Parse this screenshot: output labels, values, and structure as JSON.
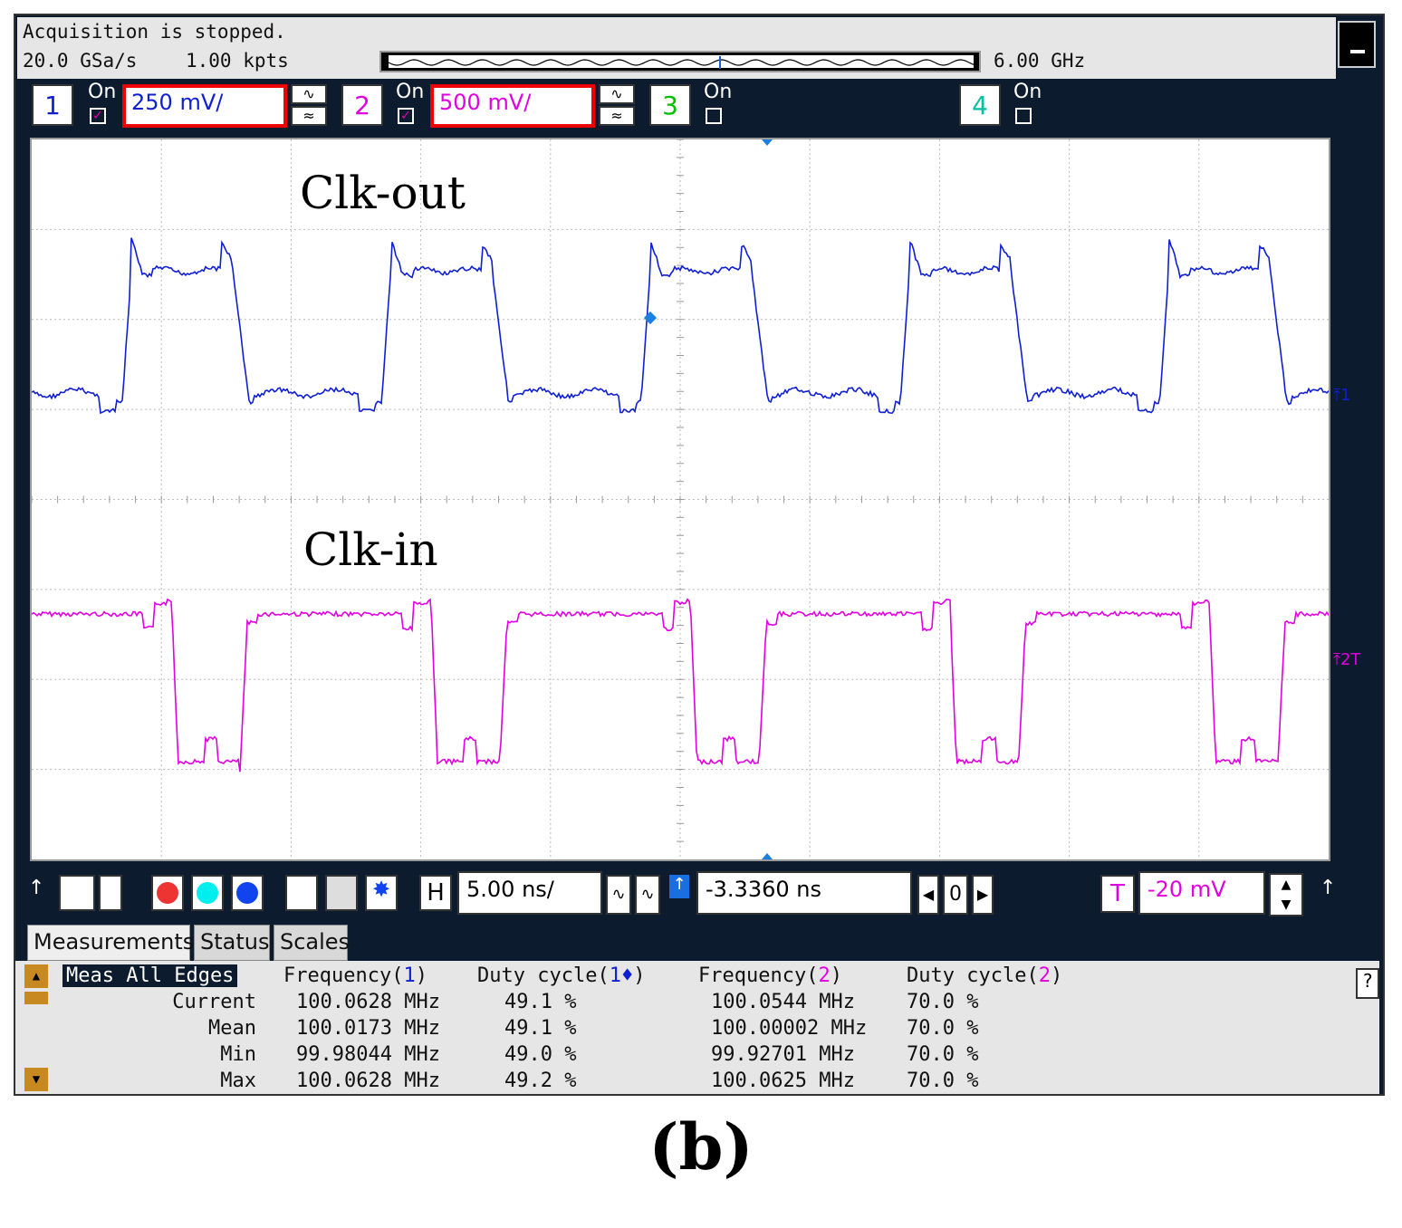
{
  "status": {
    "acquisition": "Acquisition is stopped.",
    "sample_rate": "20.0 GSa/s",
    "memory_depth": "1.00 kpts",
    "bandwidth": "6.00 GHz"
  },
  "channels": [
    {
      "num": "1",
      "on_label": "On",
      "enabled": true,
      "scale": "250 mV/",
      "color": "#1020d0"
    },
    {
      "num": "2",
      "on_label": "On",
      "enabled": true,
      "scale": "500 mV/",
      "color": "#e000e0"
    },
    {
      "num": "3",
      "on_label": "On",
      "enabled": false,
      "color": "#00c000"
    },
    {
      "num": "4",
      "on_label": "On",
      "enabled": false,
      "color": "#00c0a0"
    }
  ],
  "waveforms": {
    "upper_label": "Clk-out",
    "lower_label": "Clk-in",
    "ch1_marker": "1",
    "ch2_marker": "2T"
  },
  "horizontal": {
    "h_label": "H",
    "timebase": "5.00 ns/",
    "delay": "-3.3360 ns",
    "zero_label": "0"
  },
  "trigger": {
    "t_label": "T",
    "level": "-20 mV"
  },
  "tabs": [
    {
      "label": "Measurements",
      "active": true
    },
    {
      "label": "Status",
      "active": false
    },
    {
      "label": "Scales",
      "active": false
    }
  ],
  "measurements": {
    "mode_label": "Meas All Edges",
    "headers": [
      {
        "text": "Frequency(",
        "ch": "1",
        "tail": ")"
      },
      {
        "text": "Duty cycle(",
        "ch": "1♦",
        "tail": ")"
      },
      {
        "text": "Frequency(",
        "ch": "2",
        "tail": ")"
      },
      {
        "text": "Duty cycle(",
        "ch": "2",
        "tail": ")"
      }
    ],
    "rows": [
      {
        "label": "Current",
        "values": [
          "100.0628 MHz",
          "49.1 %",
          "100.0544 MHz",
          "70.0 %"
        ]
      },
      {
        "label": "Mean",
        "values": [
          "100.0173 MHz",
          "49.1 %",
          "100.00002 MHz",
          "70.0 %"
        ]
      },
      {
        "label": "Min",
        "values": [
          "99.98044 MHz",
          "49.0 %",
          "99.92701 MHz",
          "70.0 %"
        ]
      },
      {
        "label": "Max",
        "values": [
          "100.0628 MHz",
          "49.2 %",
          "100.0625 MHz",
          "70.0 %"
        ]
      }
    ],
    "help": "?"
  },
  "caption": "(b)"
}
